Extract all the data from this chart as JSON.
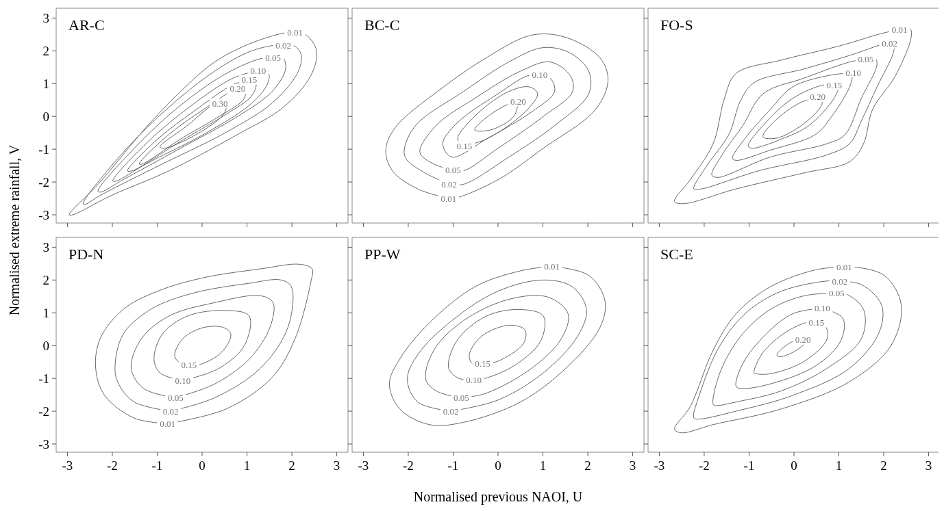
{
  "chart_data": [
    {
      "type": "line",
      "title": "AR-C",
      "ylabel": "Normalised extreme rainfall, V",
      "xlim": [
        -3.25,
        3.25
      ],
      "ylim": [
        -3.25,
        3.3
      ],
      "xticks": [
        -3,
        -2,
        -1,
        0,
        1,
        2,
        3
      ],
      "yticks": [
        -3,
        -2,
        -1,
        0,
        1,
        2,
        3
      ],
      "tick_labels": "y",
      "grid": false,
      "legend": false,
      "annotations": [
        "0.01",
        "0.02",
        "0.05",
        "0.10",
        "0.15",
        "0.20",
        "0.30"
      ]
    },
    {
      "type": "line",
      "title": "BC-C",
      "xlim": [
        -3.25,
        3.25
      ],
      "ylim": [
        -3.25,
        3.3
      ],
      "xticks": [
        -3,
        -2,
        -1,
        0,
        1,
        2,
        3
      ],
      "yticks": [
        -3,
        -2,
        -1,
        0,
        1,
        2,
        3
      ],
      "tick_labels": false,
      "grid": false,
      "legend": false,
      "annotations": [
        "0.01",
        "0.02",
        "0.05",
        "0.10",
        "0.15",
        "0.20"
      ]
    },
    {
      "type": "line",
      "title": "FO-S",
      "xlim": [
        -3.25,
        3.25
      ],
      "ylim": [
        -3.25,
        3.3
      ],
      "xticks": [
        -3,
        -2,
        -1,
        0,
        1,
        2,
        3
      ],
      "yticks": [
        -3,
        -2,
        -1,
        0,
        1,
        2,
        3
      ],
      "tick_labels": false,
      "grid": false,
      "legend": false,
      "annotations": [
        "0.01",
        "0.02",
        "0.05",
        "0.10",
        "0.15",
        "0.20"
      ]
    },
    {
      "type": "line",
      "title": "PD-N",
      "xlim": [
        -3.25,
        3.25
      ],
      "ylim": [
        -3.25,
        3.3
      ],
      "xticks": [
        -3,
        -2,
        -1,
        0,
        1,
        2,
        3
      ],
      "yticks": [
        -3,
        -2,
        -1,
        0,
        1,
        2,
        3
      ],
      "grid": false,
      "legend": false,
      "annotations": [
        "0.01",
        "0.02",
        "0.05",
        "0.10",
        "0.15"
      ]
    },
    {
      "type": "line",
      "title": "PP-W",
      "xlabel": "Normalised previous NAOI, U",
      "xlim": [
        -3.25,
        3.25
      ],
      "ylim": [
        -3.25,
        3.3
      ],
      "xticks": [
        -3,
        -2,
        -1,
        0,
        1,
        2,
        3
      ],
      "yticks": [
        -3,
        -2,
        -1,
        0,
        1,
        2,
        3
      ],
      "tick_labels": "x",
      "grid": false,
      "legend": false,
      "annotations": [
        "0.01",
        "0.02",
        "0.05",
        "0.10",
        "0.15"
      ]
    },
    {
      "type": "line",
      "title": "SC-E",
      "xlim": [
        -3.25,
        3.25
      ],
      "ylim": [
        -3.25,
        3.3
      ],
      "xticks": [
        -3,
        -2,
        -1,
        0,
        1,
        2,
        3
      ],
      "yticks": [
        -3,
        -2,
        -1,
        0,
        1,
        2,
        3
      ],
      "tick_labels": "x",
      "grid": false,
      "legend": false,
      "annotations": [
        "0.01",
        "0.02",
        "0.05",
        "0.10",
        "0.15",
        "0.20"
      ]
    }
  ]
}
